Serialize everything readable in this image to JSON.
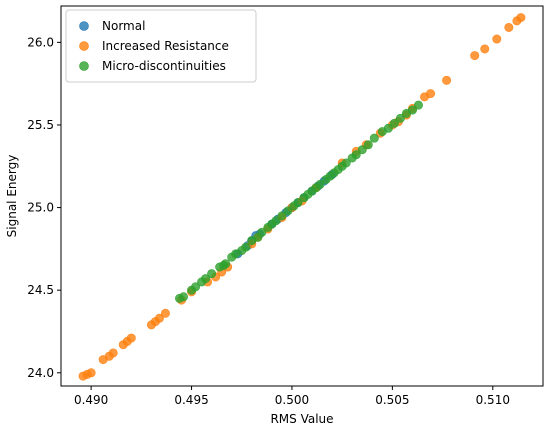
{
  "chart_data": {
    "type": "scatter",
    "xlabel": "RMS Value",
    "ylabel": "Signal Energy",
    "xlim": [
      0.4885,
      0.5125
    ],
    "ylim": [
      23.92,
      26.22
    ],
    "xticks": [
      0.49,
      0.495,
      0.5,
      0.505,
      0.51
    ],
    "xtick_labels": [
      "0.490",
      "0.495",
      "0.500",
      "0.505",
      "0.510"
    ],
    "yticks": [
      24.0,
      24.5,
      25.0,
      25.5,
      26.0
    ],
    "ytick_labels": [
      "24.0",
      "24.5",
      "25.0",
      "25.5",
      "26.0"
    ],
    "grid": false,
    "legend_position": "top-left",
    "series": [
      {
        "name": "Normal",
        "color": "#1f77b4",
        "x": [
          0.4973,
          0.4978,
          0.498,
          0.4982,
          0.4984,
          0.499,
          0.4993,
          0.4997,
          0.5,
          0.5003,
          0.5006,
          0.501,
          0.5013,
          0.5016,
          0.502
        ],
        "y": [
          24.72,
          24.77,
          24.8,
          24.83,
          24.84,
          24.9,
          24.93,
          24.97,
          25.0,
          25.03,
          25.06,
          25.1,
          25.13,
          25.16,
          25.2
        ]
      },
      {
        "name": "Increased Resistance",
        "color": "#ff7f0e",
        "x": [
          0.4896,
          0.4898,
          0.49,
          0.4906,
          0.4909,
          0.4911,
          0.4916,
          0.4918,
          0.492,
          0.493,
          0.4932,
          0.4934,
          0.4937,
          0.4945,
          0.495,
          0.4958,
          0.4962,
          0.4965,
          0.4968,
          0.498,
          0.4983,
          0.4988,
          0.4995,
          0.5,
          0.5005,
          0.5012,
          0.5025,
          0.5032,
          0.5037,
          0.5044,
          0.505,
          0.5053,
          0.5057,
          0.506,
          0.5066,
          0.5069,
          0.5077,
          0.5091,
          0.5096,
          0.5102,
          0.5108,
          0.5112,
          0.5114
        ],
        "y": [
          23.98,
          23.99,
          24.0,
          24.08,
          24.1,
          24.12,
          24.17,
          24.19,
          24.21,
          24.29,
          24.31,
          24.33,
          24.36,
          24.44,
          24.49,
          24.55,
          24.58,
          24.61,
          24.64,
          24.78,
          24.82,
          24.87,
          24.94,
          25.0,
          25.04,
          25.12,
          25.27,
          25.34,
          25.38,
          25.45,
          25.5,
          25.52,
          25.56,
          25.6,
          25.67,
          25.69,
          25.77,
          25.92,
          25.96,
          26.02,
          26.09,
          26.13,
          26.15
        ],
        "size": 6
      },
      {
        "name": "Micro-discontinuities",
        "color": "#2ca02c",
        "x": [
          0.4944,
          0.4946,
          0.495,
          0.4952,
          0.4955,
          0.4957,
          0.496,
          0.4964,
          0.4966,
          0.4967,
          0.497,
          0.4972,
          0.4975,
          0.4977,
          0.498,
          0.4983,
          0.4985,
          0.4988,
          0.499,
          0.4992,
          0.4995,
          0.4998,
          0.5001,
          0.5003,
          0.5006,
          0.5008,
          0.501,
          0.5012,
          0.5014,
          0.5017,
          0.5019,
          0.5021,
          0.5023,
          0.5025,
          0.5027,
          0.503,
          0.5032,
          0.5035,
          0.5038,
          0.5041,
          0.5045,
          0.5048,
          0.5051,
          0.5054,
          0.5057,
          0.506,
          0.5063
        ],
        "y": [
          24.45,
          24.46,
          24.5,
          24.52,
          24.55,
          24.57,
          24.6,
          24.64,
          24.65,
          24.66,
          24.7,
          24.72,
          24.74,
          24.76,
          24.8,
          24.82,
          24.85,
          24.88,
          24.9,
          24.92,
          24.95,
          24.98,
          25.01,
          25.03,
          25.06,
          25.08,
          25.1,
          25.12,
          25.14,
          25.17,
          25.19,
          25.21,
          25.23,
          25.25,
          25.27,
          25.3,
          25.32,
          25.35,
          25.38,
          25.42,
          25.46,
          25.48,
          25.51,
          25.54,
          25.57,
          25.59,
          25.62
        ]
      }
    ]
  }
}
